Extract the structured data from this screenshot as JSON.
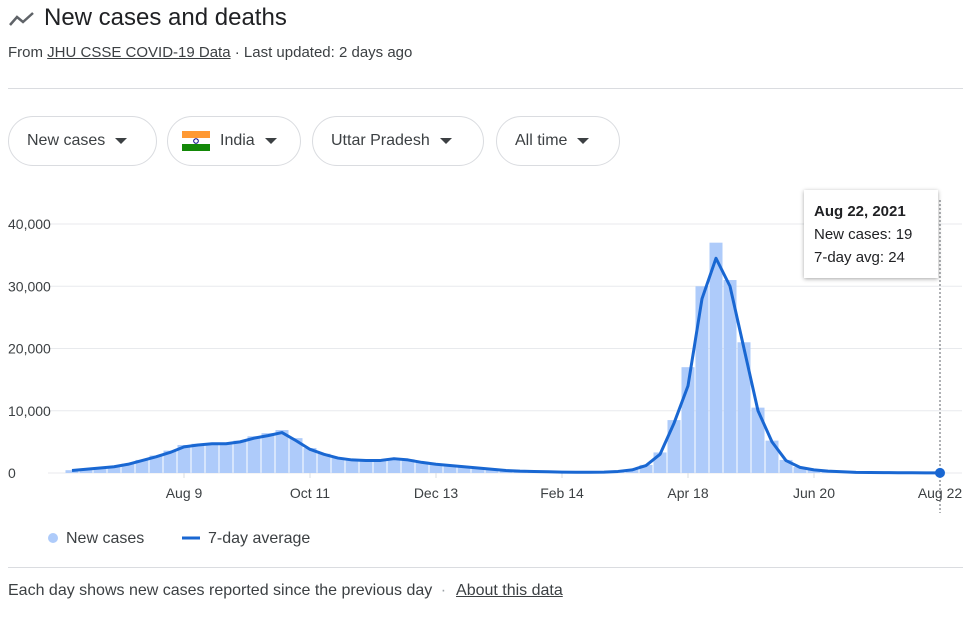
{
  "header": {
    "title": "New cases and deaths",
    "source_prefix": "From",
    "source_link": "JHU CSSE COVID-19 Data",
    "updated": "· Last updated: 2 days ago"
  },
  "filters": [
    "New cases",
    "India",
    "Uttar Pradesh",
    "All time"
  ],
  "chart_data": {
    "type": "bar-line",
    "categories": [
      null,
      null,
      null,
      null,
      null,
      null,
      null,
      null,
      "Aug 9",
      null,
      null,
      null,
      null,
      null,
      null,
      null,
      null,
      "Oct 11",
      null,
      null,
      null,
      null,
      null,
      null,
      null,
      null,
      "Dec 13",
      null,
      null,
      null,
      null,
      null,
      null,
      null,
      null,
      "Feb 14",
      null,
      null,
      null,
      null,
      null,
      null,
      null,
      null,
      "Apr 18",
      null,
      null,
      null,
      null,
      null,
      null,
      null,
      null,
      "Jun 20",
      null,
      null,
      null,
      null,
      null,
      null,
      null,
      null,
      "Aug 22"
    ],
    "series": [
      {
        "name": "New cases",
        "color": "#aecbfa",
        "values": [
          450,
          650,
          850,
          1100,
          1500,
          2100,
          2800,
          3600,
          4500,
          4700,
          4800,
          4900,
          5200,
          5900,
          6400,
          6900,
          5600,
          4000,
          3100,
          2500,
          2200,
          2100,
          2100,
          2400,
          2200,
          1800,
          1500,
          1250,
          1050,
          850,
          650,
          450,
          330,
          270,
          210,
          160,
          130,
          130,
          160,
          270,
          550,
          1300,
          3300,
          8500,
          17000,
          30000,
          37000,
          31000,
          21000,
          10500,
          5200,
          2100,
          950,
          520,
          320,
          210,
          110,
          85,
          65,
          55,
          42,
          32,
          19
        ]
      },
      {
        "name": "7-day average",
        "color": "#1967d2",
        "values": [
          400,
          600,
          800,
          1000,
          1400,
          2000,
          2600,
          3300,
          4200,
          4500,
          4700,
          4700,
          5000,
          5600,
          6000,
          6500,
          5200,
          3800,
          3000,
          2400,
          2100,
          2000,
          2000,
          2300,
          2100,
          1700,
          1400,
          1200,
          1000,
          800,
          600,
          400,
          300,
          250,
          200,
          150,
          120,
          120,
          150,
          250,
          500,
          1200,
          3000,
          8000,
          14000,
          28000,
          34500,
          30000,
          20000,
          10000,
          5000,
          2000,
          900,
          500,
          300,
          200,
          100,
          80,
          60,
          50,
          40,
          30,
          24
        ]
      }
    ],
    "ylim": [
      0,
      40000
    ],
    "yticks": [
      0,
      {
        "value": 10000,
        "label": "10,000"
      },
      {
        "value": 20000,
        "label": "20,000"
      },
      {
        "value": 30000,
        "label": "30,000"
      },
      {
        "value": 40000,
        "label": "40,000"
      }
    ],
    "grid": true,
    "tooltip": {
      "title": "Aug 22, 2021",
      "lines": [
        "New cases: 19",
        "7-day avg: 24"
      ]
    }
  },
  "footer": {
    "note": "Each day shows new cases reported since the previous day",
    "separator": "·",
    "link": "About this data"
  }
}
